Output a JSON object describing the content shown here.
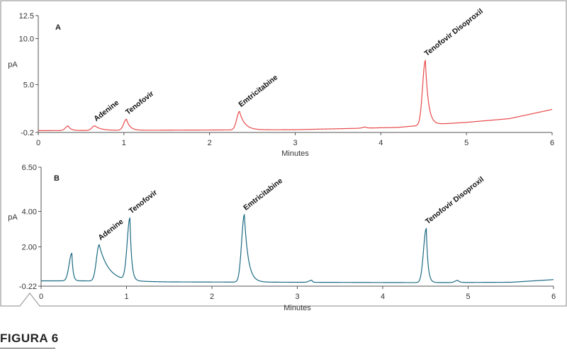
{
  "figure_caption": "FIGURA 6",
  "colors": {
    "panel_a": "#e8484a",
    "panel_b": "#1c6a82",
    "axis": "#555555",
    "frame": "#888888"
  },
  "chart_data": [
    {
      "type": "line",
      "panel_label": "A",
      "xlabel": "Minutes",
      "ylabel": "pA",
      "xlim": [
        0,
        6
      ],
      "ylim": [
        -0.2,
        12.5
      ],
      "x_ticks": [
        0,
        1,
        2,
        3,
        4,
        5,
        6
      ],
      "y_ticks": [
        -0.2,
        5.0,
        10.0,
        12.5
      ],
      "y_tick_labels": [
        "-0.2",
        "5.0",
        "10.0",
        "12.5"
      ],
      "baseline": [
        [
          0,
          0.0
        ],
        [
          1.5,
          0.05
        ],
        [
          3,
          0.1
        ],
        [
          4.2,
          0.35
        ],
        [
          4.5,
          0.6
        ],
        [
          5.0,
          0.9
        ],
        [
          5.5,
          1.3
        ],
        [
          6,
          2.3
        ]
      ],
      "peaks": [
        {
          "name": "",
          "rt": 0.35,
          "height": 0.5,
          "tail": 0.03
        },
        {
          "name": "Adenine",
          "rt": 0.66,
          "height": 0.5,
          "tail": 0.07
        },
        {
          "name": "Tenofovir",
          "rt": 1.03,
          "height": 1.2,
          "tail": 0.04
        },
        {
          "name": "Emtricitabine",
          "rt": 2.35,
          "height": 2.0,
          "tail": 0.06
        },
        {
          "name": "",
          "rt": 3.82,
          "height": 0.12,
          "tail": 0.02
        },
        {
          "name": "Tenofovir Disoproxil",
          "rt": 4.52,
          "height": 7.0,
          "tail": 0.035
        }
      ]
    },
    {
      "type": "line",
      "panel_label": "B",
      "xlabel": "Minutes",
      "ylabel": "pA",
      "xlim": [
        0,
        6
      ],
      "ylim": [
        -0.22,
        6.5
      ],
      "x_ticks": [
        0,
        1,
        2,
        3,
        4,
        5,
        6
      ],
      "y_ticks": [
        -0.22,
        2.0,
        4.0,
        6.5
      ],
      "y_tick_labels": [
        "-0.22",
        "2.00",
        "4.00",
        "6.50"
      ],
      "baseline": [
        [
          0,
          0.08
        ],
        [
          0.5,
          0.08
        ],
        [
          1.5,
          0.02
        ],
        [
          3,
          0.0
        ],
        [
          4.5,
          -0.02
        ],
        [
          5.5,
          0.0
        ],
        [
          6,
          0.15
        ]
      ],
      "peaks": [
        {
          "name": "",
          "rt": 0.36,
          "height": 1.55,
          "tail": 0.015
        },
        {
          "name": "Adenine",
          "rt": 0.68,
          "height": 2.05,
          "tail": 0.11
        },
        {
          "name": "Tenofovir",
          "rt": 1.04,
          "height": 3.5,
          "tail": 0.02
        },
        {
          "name": "Emtricitabine",
          "rt": 2.38,
          "height": 3.8,
          "tail": 0.045
        },
        {
          "name": "",
          "rt": 3.17,
          "height": 0.12,
          "tail": 0.01
        },
        {
          "name": "Tenofovir Disoproxil",
          "rt": 4.51,
          "height": 3.05,
          "tail": 0.02
        },
        {
          "name": "",
          "rt": 4.88,
          "height": 0.12,
          "tail": 0.02
        }
      ]
    }
  ]
}
